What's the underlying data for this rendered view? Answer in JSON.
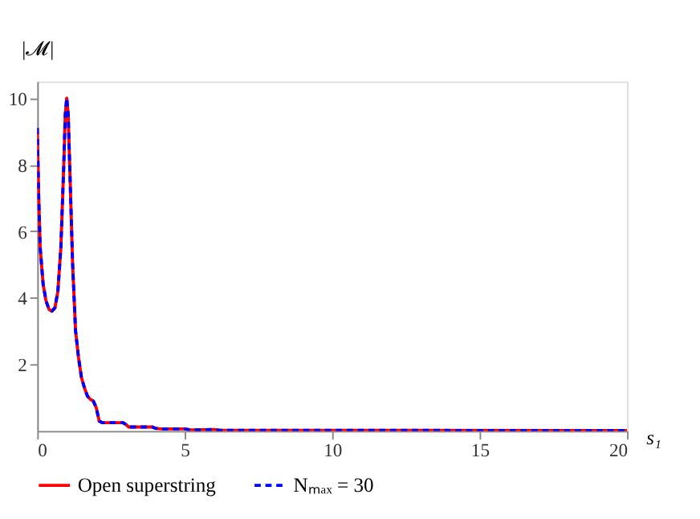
{
  "chart_data": {
    "type": "line",
    "xlabel": "s₁",
    "ylabel": "|𝓜|",
    "xlim": [
      0,
      20
    ],
    "ylim": [
      0,
      10.5
    ],
    "xticks": [
      0,
      5,
      10,
      15,
      20
    ],
    "yticks": [
      2,
      4,
      6,
      8,
      10
    ],
    "grid": false,
    "legend": "bottom",
    "marker": "none",
    "x": [
      0,
      0.05,
      0.1,
      0.2,
      0.3,
      0.4,
      0.5,
      0.6,
      0.7,
      0.8,
      0.9,
      0.95,
      1.0,
      1.05,
      1.1,
      1.2,
      1.3,
      1.4,
      1.5,
      1.6,
      1.7,
      1.8,
      1.9,
      2.0,
      2.1,
      2.2,
      2.9,
      3.0,
      3.1,
      3.9,
      4.0,
      4.2,
      5.0,
      5.2,
      6.0,
      6.2,
      7.0,
      20
    ],
    "series": [
      {
        "name": "Open superstring",
        "color": "#ff0000",
        "line_style": "solid",
        "values": [
          9.1,
          7,
          5.5,
          4.4,
          3.9,
          3.65,
          3.6,
          3.7,
          4.2,
          5.5,
          8,
          9.5,
          10,
          9.5,
          8,
          5,
          3,
          2.2,
          1.6,
          1.3,
          1.05,
          0.95,
          0.9,
          0.7,
          0.3,
          0.25,
          0.25,
          0.2,
          0.12,
          0.12,
          0.08,
          0.06,
          0.06,
          0.03,
          0.04,
          0.02,
          0.02,
          0.01
        ]
      },
      {
        "name": "Nₘₐₓ = 30",
        "color": "#0000ff",
        "line_style": "dashed",
        "values": [
          9.1,
          7,
          5.5,
          4.4,
          3.9,
          3.65,
          3.6,
          3.7,
          4.2,
          5.5,
          8,
          9.5,
          10,
          9.5,
          8,
          5,
          3,
          2.2,
          1.6,
          1.3,
          1.05,
          0.95,
          0.9,
          0.7,
          0.3,
          0.25,
          0.25,
          0.2,
          0.12,
          0.12,
          0.08,
          0.06,
          0.06,
          0.03,
          0.04,
          0.02,
          0.02,
          0.01
        ]
      }
    ]
  }
}
